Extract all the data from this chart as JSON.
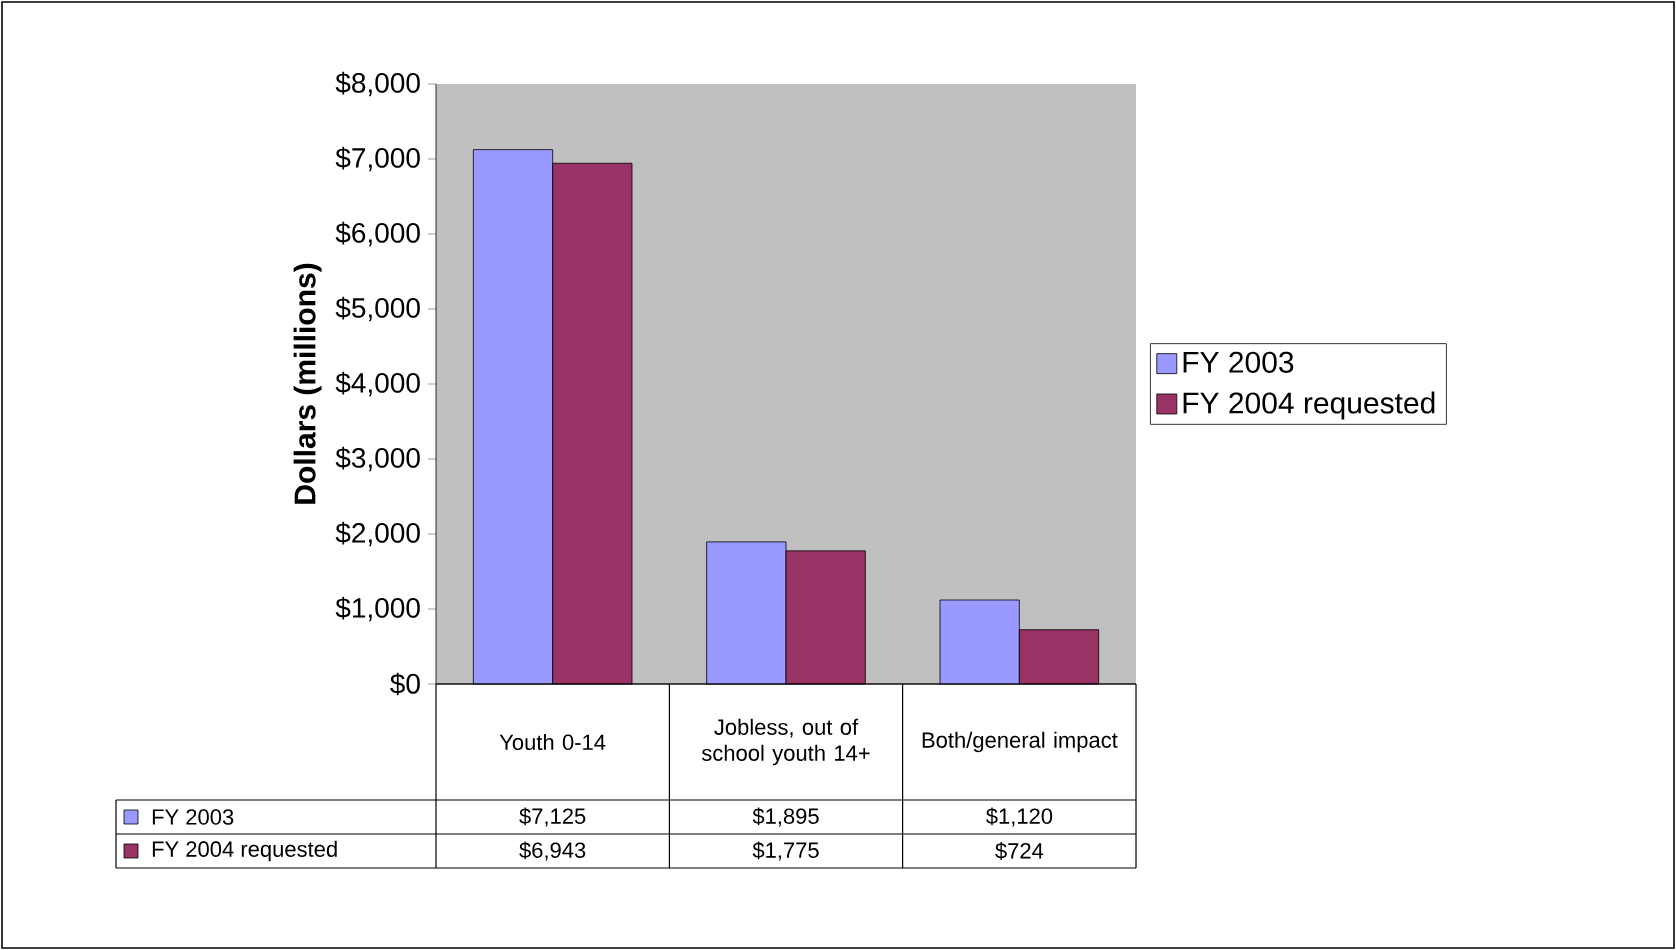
{
  "chart_data": {
    "type": "bar",
    "ylabel": "Dollars (millions)",
    "categories": [
      "Youth 0-14",
      "Jobless, out of school youth 14+",
      "Both/general impact"
    ],
    "series": [
      {
        "name": "FY 2003",
        "color": "#9999ff",
        "values": [
          7125,
          1895,
          1120
        ],
        "value_labels": [
          "$7,125",
          "$1,895",
          "$1,120"
        ]
      },
      {
        "name": "FY 2004 requested",
        "color": "#993366",
        "values": [
          6943,
          1775,
          724
        ],
        "value_labels": [
          "$6,943",
          "$1,775",
          "$724"
        ]
      }
    ],
    "ylim": [
      0,
      8000
    ],
    "yticks": [
      {
        "value": 0,
        "label": "$0"
      },
      {
        "value": 1000,
        "label": "$1,000"
      },
      {
        "value": 2000,
        "label": "$2,000"
      },
      {
        "value": 3000,
        "label": "$3,000"
      },
      {
        "value": 4000,
        "label": "$4,000"
      },
      {
        "value": 5000,
        "label": "$5,000"
      },
      {
        "value": 6000,
        "label": "$6,000"
      },
      {
        "value": 7000,
        "label": "$7,000"
      },
      {
        "value": 8000,
        "label": "$8,000"
      }
    ],
    "legend": "right"
  }
}
